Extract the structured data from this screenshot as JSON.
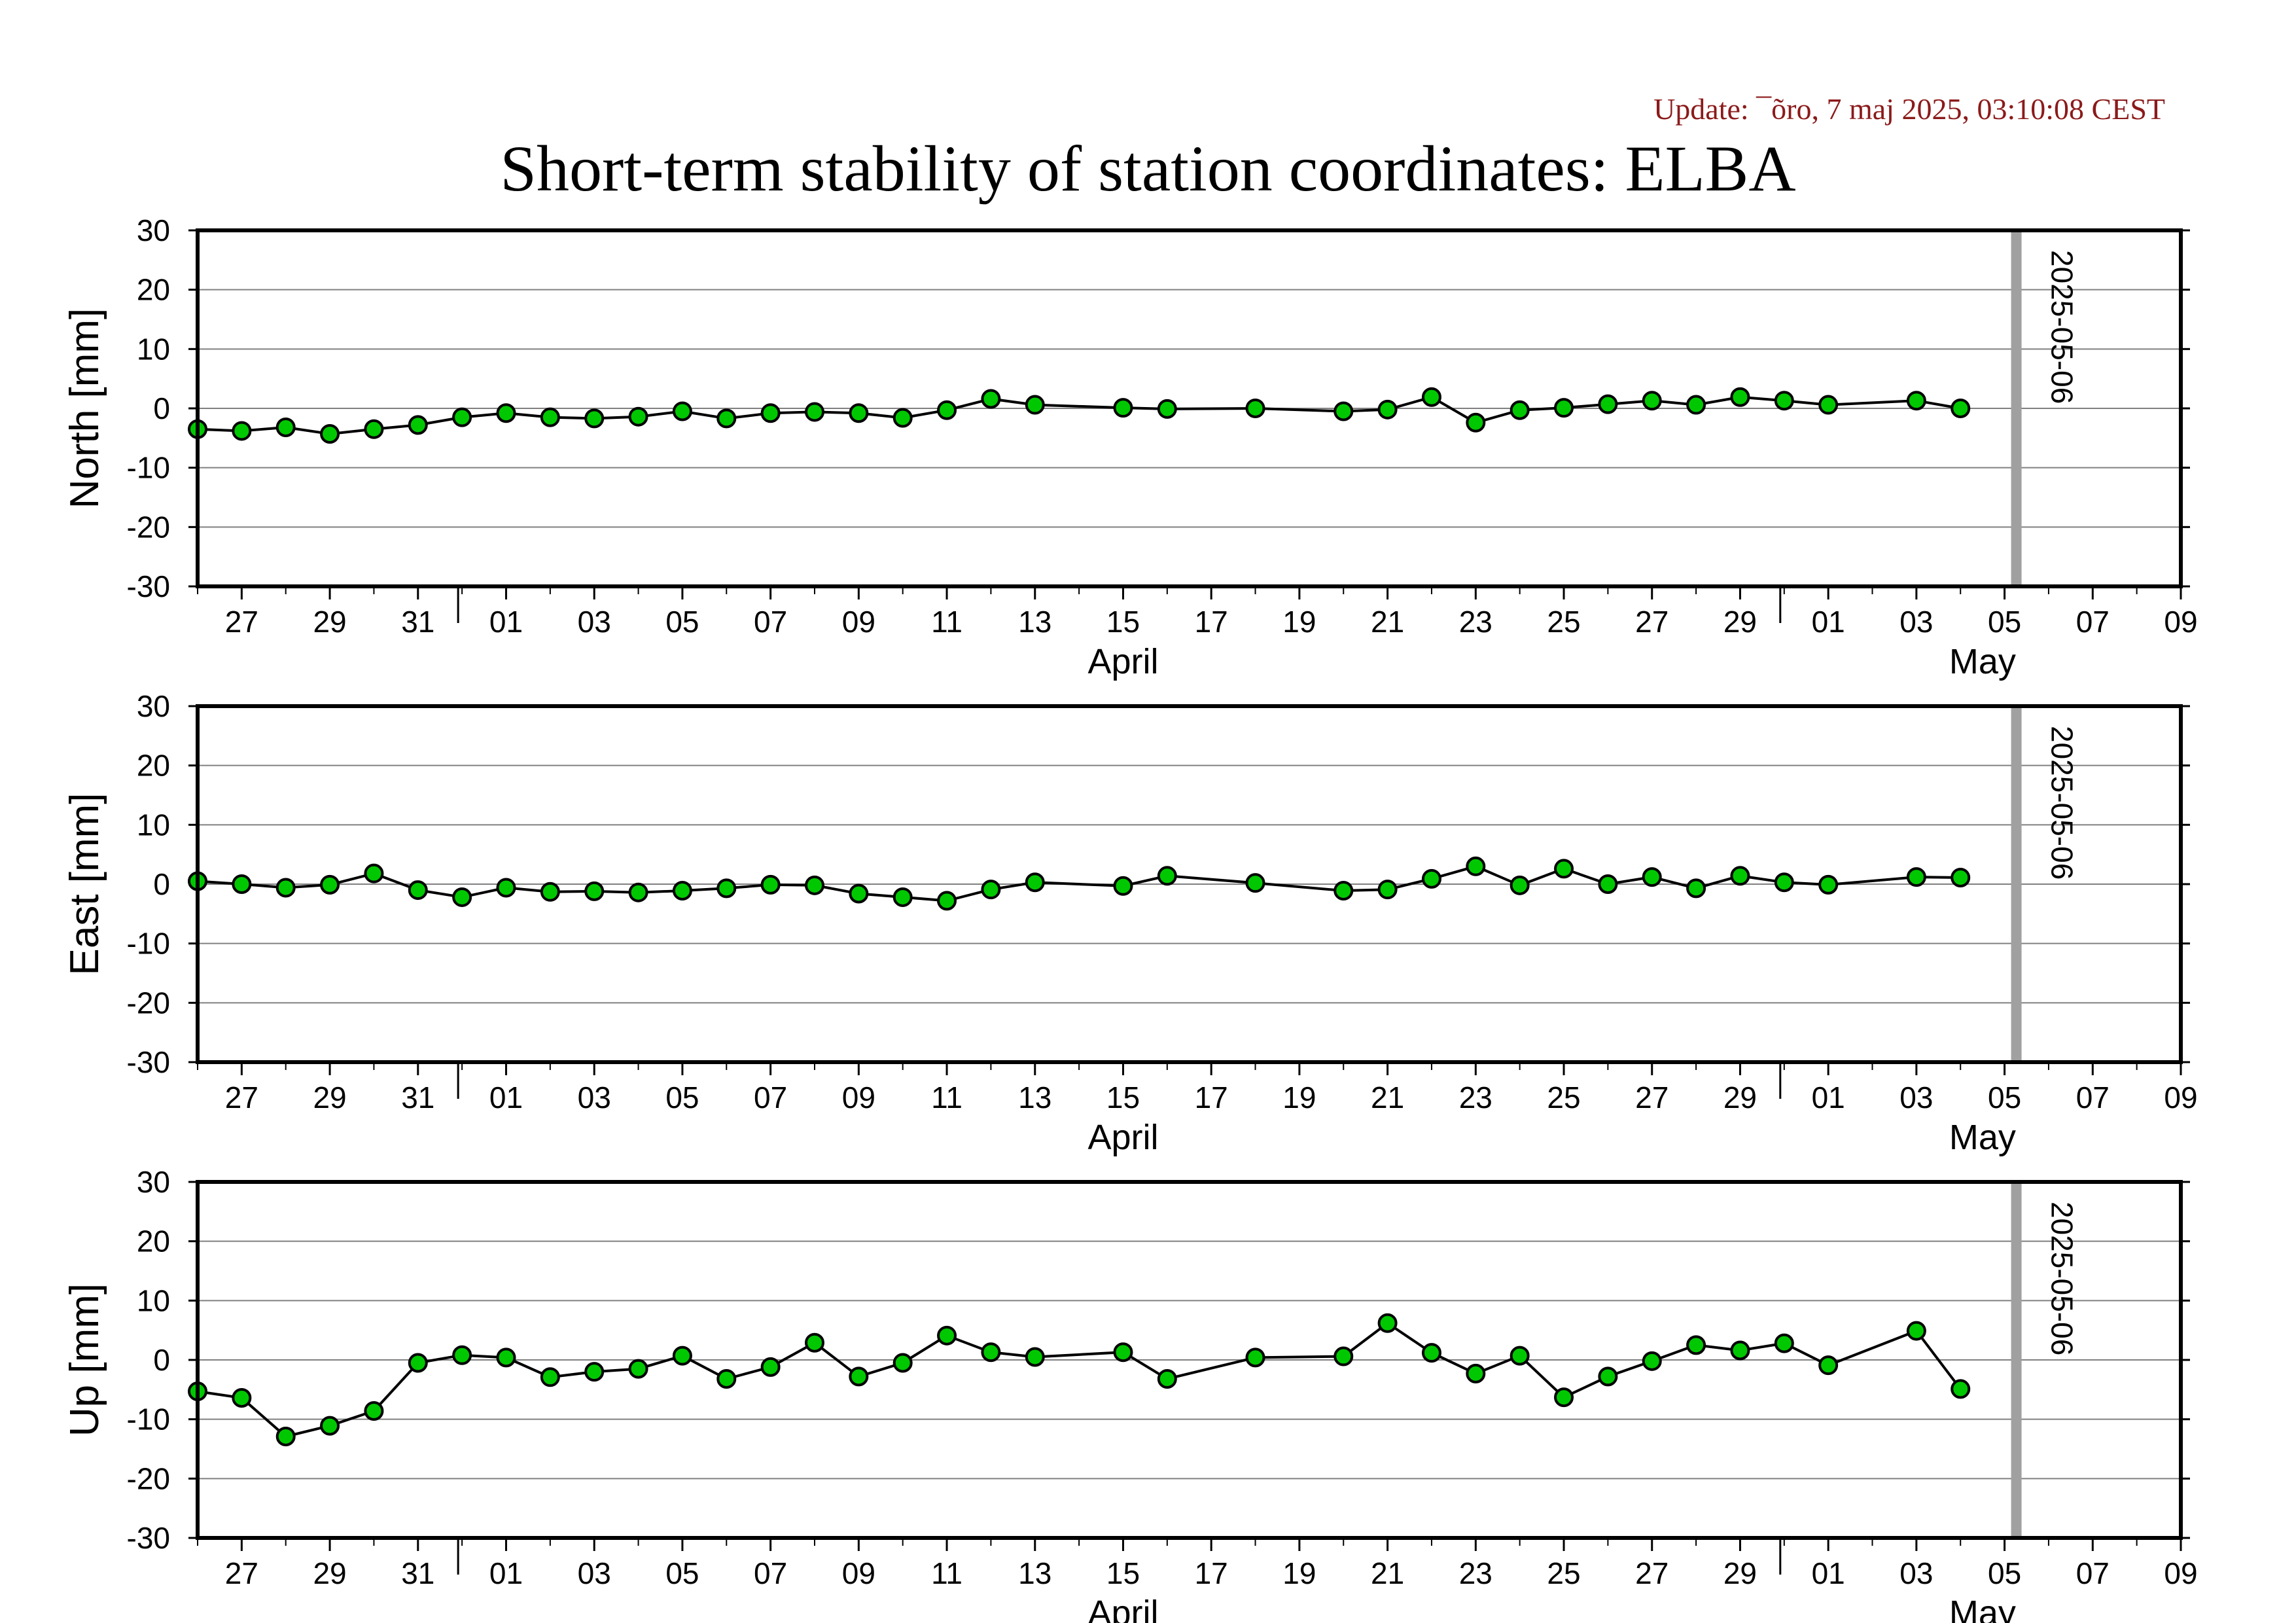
{
  "header": {
    "update": "Update: ¯õro, 7 maj 2025, 03:10:08 CEST",
    "title": "Short-term stability of station coordinates: ELBA"
  },
  "colors": {
    "marker_fill": "#00c800",
    "marker_stroke": "#000000",
    "line": "#000000",
    "marker_line": "#a0a0a0",
    "update_text": "#8b1a1a",
    "grid": "#808080"
  },
  "chart_data": [
    {
      "type": "line",
      "ylabel": "North [mm]",
      "ylim": [
        -30,
        30
      ],
      "yticks": [
        -30,
        -20,
        -10,
        0,
        10,
        20,
        30
      ],
      "xlim": [
        "2025-03-26",
        "2025-05-10"
      ],
      "xtick_labels": [
        "27",
        "29",
        "31",
        "01",
        "03",
        "05",
        "07",
        "09",
        "11",
        "13",
        "15",
        "17",
        "19",
        "21",
        "23",
        "25",
        "27",
        "29",
        "01",
        "03",
        "05",
        "07",
        "09"
      ],
      "month_labels": [
        "April",
        "May"
      ],
      "grid": true,
      "marker_line": {
        "date": "2025-05-06",
        "label": "2025-05-06"
      },
      "points": [
        [
          "2025-03-26",
          -3.5
        ],
        [
          "2025-03-27",
          -3.8
        ],
        [
          "2025-03-28",
          -3.2
        ],
        [
          "2025-03-29",
          -4.3
        ],
        [
          "2025-03-30",
          -3.5
        ],
        [
          "2025-03-31",
          -2.8
        ],
        [
          "2025-04-01",
          -1.5
        ],
        [
          "2025-04-02",
          -0.8
        ],
        [
          "2025-04-03",
          -1.5
        ],
        [
          "2025-04-04",
          -1.7
        ],
        [
          "2025-04-05",
          -1.4
        ],
        [
          "2025-04-06",
          -0.5
        ],
        [
          "2025-04-07",
          -1.7
        ],
        [
          "2025-04-08",
          -0.8
        ],
        [
          "2025-04-09",
          -0.6
        ],
        [
          "2025-04-10",
          -0.8
        ],
        [
          "2025-04-11",
          -1.6
        ],
        [
          "2025-04-12",
          -0.3
        ],
        [
          "2025-04-13",
          1.6
        ],
        [
          "2025-04-14",
          0.6
        ],
        [
          "2025-04-16",
          0.1
        ],
        [
          "2025-04-17",
          -0.1
        ],
        [
          "2025-04-19",
          0.0
        ],
        [
          "2025-04-21",
          -0.5
        ],
        [
          "2025-04-22",
          -0.2
        ],
        [
          "2025-04-23",
          1.9
        ],
        [
          "2025-04-24",
          -2.4
        ],
        [
          "2025-04-25",
          -0.3
        ],
        [
          "2025-04-26",
          0.1
        ],
        [
          "2025-04-27",
          0.7
        ],
        [
          "2025-04-28",
          1.3
        ],
        [
          "2025-04-29",
          0.6
        ],
        [
          "2025-04-30",
          1.9
        ],
        [
          "2025-05-01",
          1.3
        ],
        [
          "2025-05-02",
          0.6
        ],
        [
          "2025-05-04",
          1.3
        ],
        [
          "2025-05-05",
          0.0
        ]
      ]
    },
    {
      "type": "line",
      "ylabel": "East [mm]",
      "ylim": [
        -30,
        30
      ],
      "yticks": [
        -30,
        -20,
        -10,
        0,
        10,
        20,
        30
      ],
      "xlim": [
        "2025-03-26",
        "2025-05-10"
      ],
      "xtick_labels": [
        "27",
        "29",
        "31",
        "01",
        "03",
        "05",
        "07",
        "09",
        "11",
        "13",
        "15",
        "17",
        "19",
        "21",
        "23",
        "25",
        "27",
        "29",
        "01",
        "03",
        "05",
        "07",
        "09"
      ],
      "month_labels": [
        "April",
        "May"
      ],
      "grid": true,
      "marker_line": {
        "date": "2025-05-06",
        "label": "2025-05-06"
      },
      "points": [
        [
          "2025-03-26",
          0.5
        ],
        [
          "2025-03-27",
          0.0
        ],
        [
          "2025-03-28",
          -0.6
        ],
        [
          "2025-03-29",
          -0.1
        ],
        [
          "2025-03-30",
          1.8
        ],
        [
          "2025-03-31",
          -1.0
        ],
        [
          "2025-04-01",
          -2.2
        ],
        [
          "2025-04-02",
          -0.6
        ],
        [
          "2025-04-03",
          -1.3
        ],
        [
          "2025-04-04",
          -1.2
        ],
        [
          "2025-04-05",
          -1.4
        ],
        [
          "2025-04-06",
          -1.1
        ],
        [
          "2025-04-07",
          -0.7
        ],
        [
          "2025-04-08",
          -0.1
        ],
        [
          "2025-04-09",
          -0.2
        ],
        [
          "2025-04-10",
          -1.6
        ],
        [
          "2025-04-11",
          -2.2
        ],
        [
          "2025-04-12",
          -2.8
        ],
        [
          "2025-04-13",
          -0.9
        ],
        [
          "2025-04-14",
          0.3
        ],
        [
          "2025-04-16",
          -0.3
        ],
        [
          "2025-04-17",
          1.4
        ],
        [
          "2025-04-19",
          0.2
        ],
        [
          "2025-04-21",
          -1.1
        ],
        [
          "2025-04-22",
          -0.9
        ],
        [
          "2025-04-23",
          0.9
        ],
        [
          "2025-04-24",
          3.0
        ],
        [
          "2025-04-25",
          -0.2
        ],
        [
          "2025-04-26",
          2.6
        ],
        [
          "2025-04-27",
          0.0
        ],
        [
          "2025-04-28",
          1.2
        ],
        [
          "2025-04-29",
          -0.7
        ],
        [
          "2025-04-30",
          1.4
        ],
        [
          "2025-05-01",
          0.3
        ],
        [
          "2025-05-02",
          -0.1
        ],
        [
          "2025-05-04",
          1.2
        ],
        [
          "2025-05-05",
          1.1
        ]
      ]
    },
    {
      "type": "line",
      "ylabel": "Up [mm]",
      "ylim": [
        -30,
        30
      ],
      "yticks": [
        -30,
        -20,
        -10,
        0,
        10,
        20,
        30
      ],
      "xlim": [
        "2025-03-26",
        "2025-05-10"
      ],
      "xtick_labels": [
        "27",
        "29",
        "31",
        "01",
        "03",
        "05",
        "07",
        "09",
        "11",
        "13",
        "15",
        "17",
        "19",
        "21",
        "23",
        "25",
        "27",
        "29",
        "01",
        "03",
        "05",
        "07",
        "09"
      ],
      "month_labels": [
        "April",
        "May"
      ],
      "grid": true,
      "marker_line": {
        "date": "2025-05-06",
        "label": "2025-05-06"
      },
      "points": [
        [
          "2025-03-26",
          -5.3
        ],
        [
          "2025-03-27",
          -6.4
        ],
        [
          "2025-03-28",
          -12.9
        ],
        [
          "2025-03-29",
          -11.1
        ],
        [
          "2025-03-30",
          -8.6
        ],
        [
          "2025-03-31",
          -0.5
        ],
        [
          "2025-04-01",
          0.8
        ],
        [
          "2025-04-02",
          0.4
        ],
        [
          "2025-04-03",
          -2.9
        ],
        [
          "2025-04-04",
          -2.0
        ],
        [
          "2025-04-05",
          -1.5
        ],
        [
          "2025-04-06",
          0.7
        ],
        [
          "2025-04-07",
          -3.2
        ],
        [
          "2025-04-08",
          -1.2
        ],
        [
          "2025-04-09",
          2.9
        ],
        [
          "2025-04-10",
          -2.8
        ],
        [
          "2025-04-11",
          -0.5
        ],
        [
          "2025-04-12",
          4.1
        ],
        [
          "2025-04-13",
          1.3
        ],
        [
          "2025-04-14",
          0.5
        ],
        [
          "2025-04-16",
          1.3
        ],
        [
          "2025-04-17",
          -3.2
        ],
        [
          "2025-04-19",
          0.4
        ],
        [
          "2025-04-21",
          0.6
        ],
        [
          "2025-04-22",
          6.2
        ],
        [
          "2025-04-23",
          1.2
        ],
        [
          "2025-04-24",
          -2.3
        ],
        [
          "2025-04-25",
          0.7
        ],
        [
          "2025-04-26",
          -6.3
        ],
        [
          "2025-04-27",
          -2.8
        ],
        [
          "2025-04-28",
          -0.2
        ],
        [
          "2025-04-29",
          2.5
        ],
        [
          "2025-04-30",
          1.6
        ],
        [
          "2025-05-01",
          2.8
        ],
        [
          "2025-05-02",
          -0.9
        ],
        [
          "2025-05-04",
          4.9
        ],
        [
          "2025-05-05",
          -4.9
        ]
      ]
    }
  ]
}
